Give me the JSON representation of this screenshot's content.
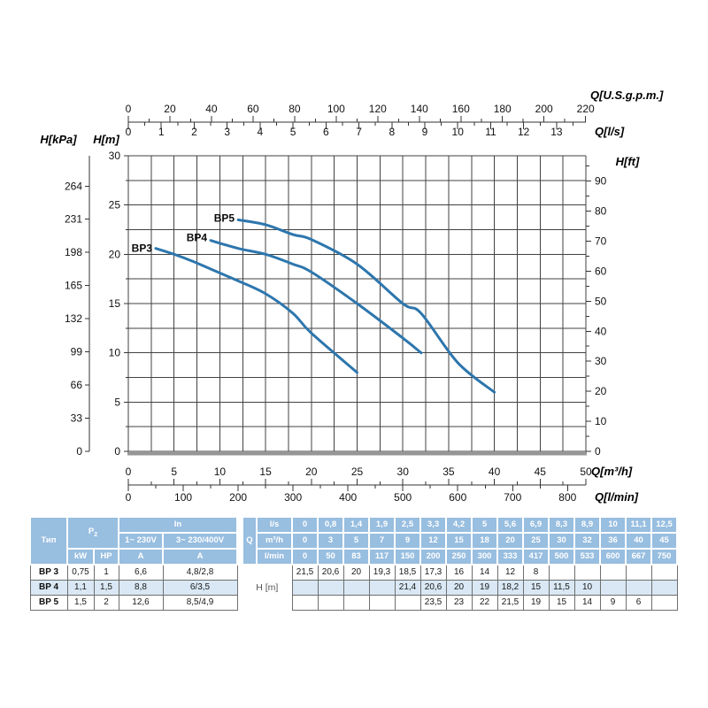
{
  "chart": {
    "colors": {
      "curve": "#2d76ad",
      "grid": "#424242",
      "axis": "#333333",
      "text": "#111111",
      "bottom_border": "#969696"
    },
    "axes": {
      "top_gpm": {
        "title": "Q[U.S.g.p.m.]",
        "ticks": [
          0,
          20,
          40,
          60,
          80,
          100,
          120,
          140,
          160,
          180,
          200,
          220
        ],
        "minor_step": 10,
        "to_m3h": 0.2271247
      },
      "top_ls": {
        "title": "Q[l/s]",
        "ticks": [
          0,
          1,
          2,
          3,
          4,
          5,
          6,
          7,
          8,
          9,
          10,
          11,
          12,
          13
        ],
        "minor_step": 0.5,
        "minor_max": 13.5,
        "to_m3h": 3.6
      },
      "left_kpa": {
        "title": "H[kPa]",
        "ticks": [
          0,
          33,
          66,
          99,
          132,
          165,
          198,
          231,
          264
        ],
        "to_m": 0.101972
      },
      "left_m": {
        "title": "H[m]",
        "ticks": [
          0,
          5,
          10,
          15,
          20,
          25,
          30
        ],
        "minor_step": 2.5
      },
      "right_ft": {
        "title": "H[ft]",
        "ticks": [
          0,
          10,
          20,
          30,
          40,
          50,
          60,
          70,
          80,
          90
        ],
        "minor_step": 5,
        "minor_max": 95,
        "to_m": 0.3048
      },
      "bottom_m3h": {
        "title": "Q[m³/h]",
        "ticks": [
          0,
          5,
          10,
          15,
          20,
          25,
          30,
          35,
          40,
          45,
          50
        ],
        "minor_step": 2.5
      },
      "bottom_lmin": {
        "title": "Q[l/min]",
        "ticks": [
          0,
          100,
          200,
          300,
          400,
          500,
          600,
          700,
          800
        ],
        "minor_step": 50,
        "to_m3h": 0.06
      }
    }
  },
  "chart_data": {
    "type": "line",
    "title": "",
    "xlabel": "Q[m³/h]",
    "ylabel": "H[m]",
    "xlim": [
      0,
      50
    ],
    "ylim": [
      0,
      30
    ],
    "grid_step": 2.5,
    "legend_position": "inline-labels",
    "series": [
      {
        "name": "BP3",
        "x": [
          3,
          5,
          7,
          9,
          12,
          15,
          18,
          20,
          25
        ],
        "y": [
          20.6,
          20,
          19.3,
          18.5,
          17.3,
          16,
          14,
          12,
          8
        ]
      },
      {
        "name": "BP4",
        "x": [
          9,
          12,
          15,
          18,
          20,
          25,
          30,
          32
        ],
        "y": [
          21.4,
          20.6,
          20,
          19,
          18.2,
          15,
          11.5,
          10
        ]
      },
      {
        "name": "BP5",
        "x": [
          12,
          15,
          18,
          20,
          25,
          30,
          32,
          36,
          40
        ],
        "y": [
          23.5,
          23,
          22,
          21.5,
          19,
          15,
          14,
          9,
          6
        ]
      }
    ]
  },
  "spec_table": {
    "type_header": "Тип",
    "p2_base": "P",
    "p2_sub": "2",
    "in_header": "In",
    "voltage_headers": [
      "1~ 230V",
      "3~ 230/400V"
    ],
    "power_unit_headers": [
      "kW",
      "HP"
    ],
    "current_unit_headers": [
      "A",
      "A"
    ],
    "rows": [
      {
        "type": "BP 3",
        "cells": [
          "0,75",
          "1",
          "6,6",
          "4,8/2,8"
        ]
      },
      {
        "type": "BP 4",
        "cells": [
          "1,1",
          "1,5",
          "8,8",
          "6/3,5"
        ]
      },
      {
        "type": "BP 5",
        "cells": [
          "1,5",
          "2",
          "12,6",
          "8,5/4,9"
        ]
      }
    ]
  },
  "flow_table": {
    "q_header": "Q",
    "h_label": "H [m]",
    "unit_rows": [
      {
        "label": "l/s",
        "values": [
          "0",
          "0,8",
          "1,4",
          "1,9",
          "2,5",
          "3,3",
          "4,2",
          "5",
          "5,6",
          "6,9",
          "8,3",
          "8,9",
          "10",
          "11,1",
          "12,5"
        ]
      },
      {
        "label": "m³/h",
        "values": [
          "0",
          "3",
          "5",
          "7",
          "9",
          "12",
          "15",
          "18",
          "20",
          "25",
          "30",
          "32",
          "36",
          "40",
          "45"
        ]
      },
      {
        "label": "l/min",
        "values": [
          "0",
          "50",
          "83",
          "117",
          "150",
          "200",
          "250",
          "300",
          "333",
          "417",
          "500",
          "533",
          "600",
          "667",
          "750"
        ]
      }
    ],
    "data_rows": [
      {
        "name": "BP 3",
        "values": [
          "21,5",
          "20,6",
          "20",
          "19,3",
          "18,5",
          "17,3",
          "16",
          "14",
          "12",
          "8",
          "",
          "",
          "",
          "",
          ""
        ]
      },
      {
        "name": "BP 4",
        "values": [
          "",
          "",
          "",
          "",
          "21,4",
          "20,6",
          "20",
          "19",
          "18,2",
          "15",
          "11,5",
          "10",
          "",
          "",
          ""
        ]
      },
      {
        "name": "BP 5",
        "values": [
          "",
          "",
          "",
          "",
          "",
          "23,5",
          "23",
          "22",
          "21,5",
          "19",
          "15",
          "14",
          "9",
          "6",
          ""
        ]
      }
    ]
  }
}
